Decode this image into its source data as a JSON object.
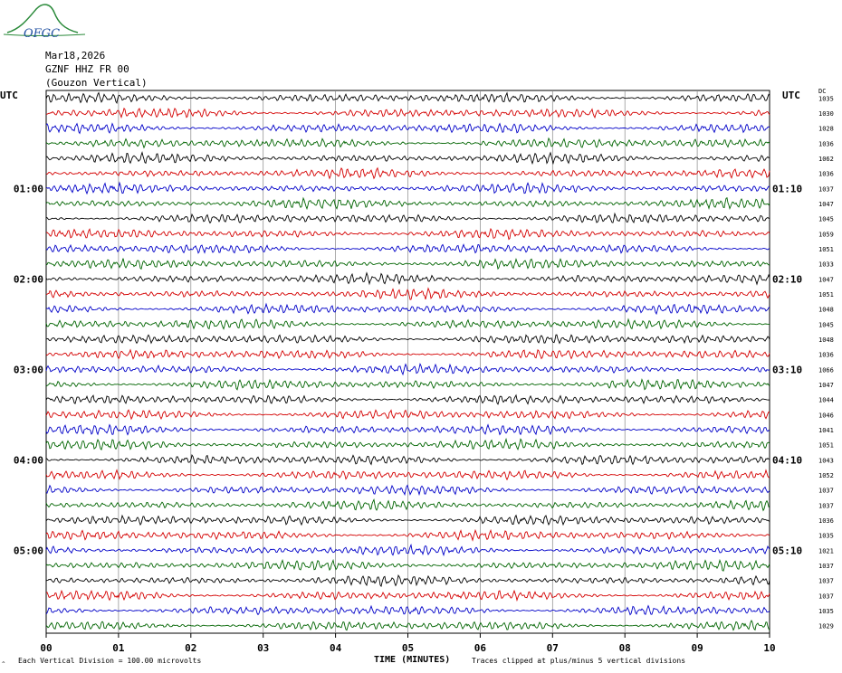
{
  "logo": {
    "text": "OFGC"
  },
  "header": {
    "date": "Mar18,2026",
    "station": "GZNF HHZ FR 00",
    "location": "(Gouzon Vertical)"
  },
  "labels": {
    "utc_left": "UTC",
    "utc_right": "UTC",
    "right_col_header": "DC",
    "time_axis": "TIME (MINUTES)",
    "scale_note": "Each Vertical Division =  100.00 microvolts",
    "clip_note": "Traces clipped at plus/minus 5 vertical divisions",
    "corner_mark": "^"
  },
  "colors": {
    "cycle": [
      "#000000",
      "#d40000",
      "#0000c8",
      "#006400"
    ],
    "grid": "#888888"
  },
  "chart_data": {
    "type": "line",
    "title": "GZNF HHZ FR 00 (Gouzon Vertical)",
    "xlabel": "TIME (MINUTES)",
    "xlim": [
      0,
      10
    ],
    "x_ticks": [
      "00",
      "01",
      "02",
      "03",
      "04",
      "05",
      "06",
      "07",
      "08",
      "09",
      "10"
    ],
    "rows": 36,
    "left_time_labels": [
      {
        "row": 6,
        "label": "01:00"
      },
      {
        "row": 12,
        "label": "02:00"
      },
      {
        "row": 18,
        "label": "03:00"
      },
      {
        "row": 24,
        "label": "04:00"
      },
      {
        "row": 30,
        "label": "05:00"
      }
    ],
    "right_time_labels": [
      {
        "row": 6,
        "label": "01:10"
      },
      {
        "row": 12,
        "label": "02:10"
      },
      {
        "row": 18,
        "label": "03:10"
      },
      {
        "row": 24,
        "label": "04:10"
      },
      {
        "row": 30,
        "label": "05:10"
      }
    ],
    "dc_offsets": [
      "1035",
      "1030",
      "1028",
      "1036",
      "1062",
      "1036",
      "1037",
      "1047",
      "1045",
      "1059",
      "1051",
      "1033",
      "1047",
      "1051",
      "1048",
      "1045",
      "1048",
      "1036",
      "1066",
      "1047",
      "1044",
      "1046",
      "1041",
      "1051",
      "1043",
      "1052",
      "1037",
      "1037",
      "1036",
      "1035",
      "1021",
      "1037",
      "1037",
      "1037",
      "1035",
      "1029"
    ]
  }
}
